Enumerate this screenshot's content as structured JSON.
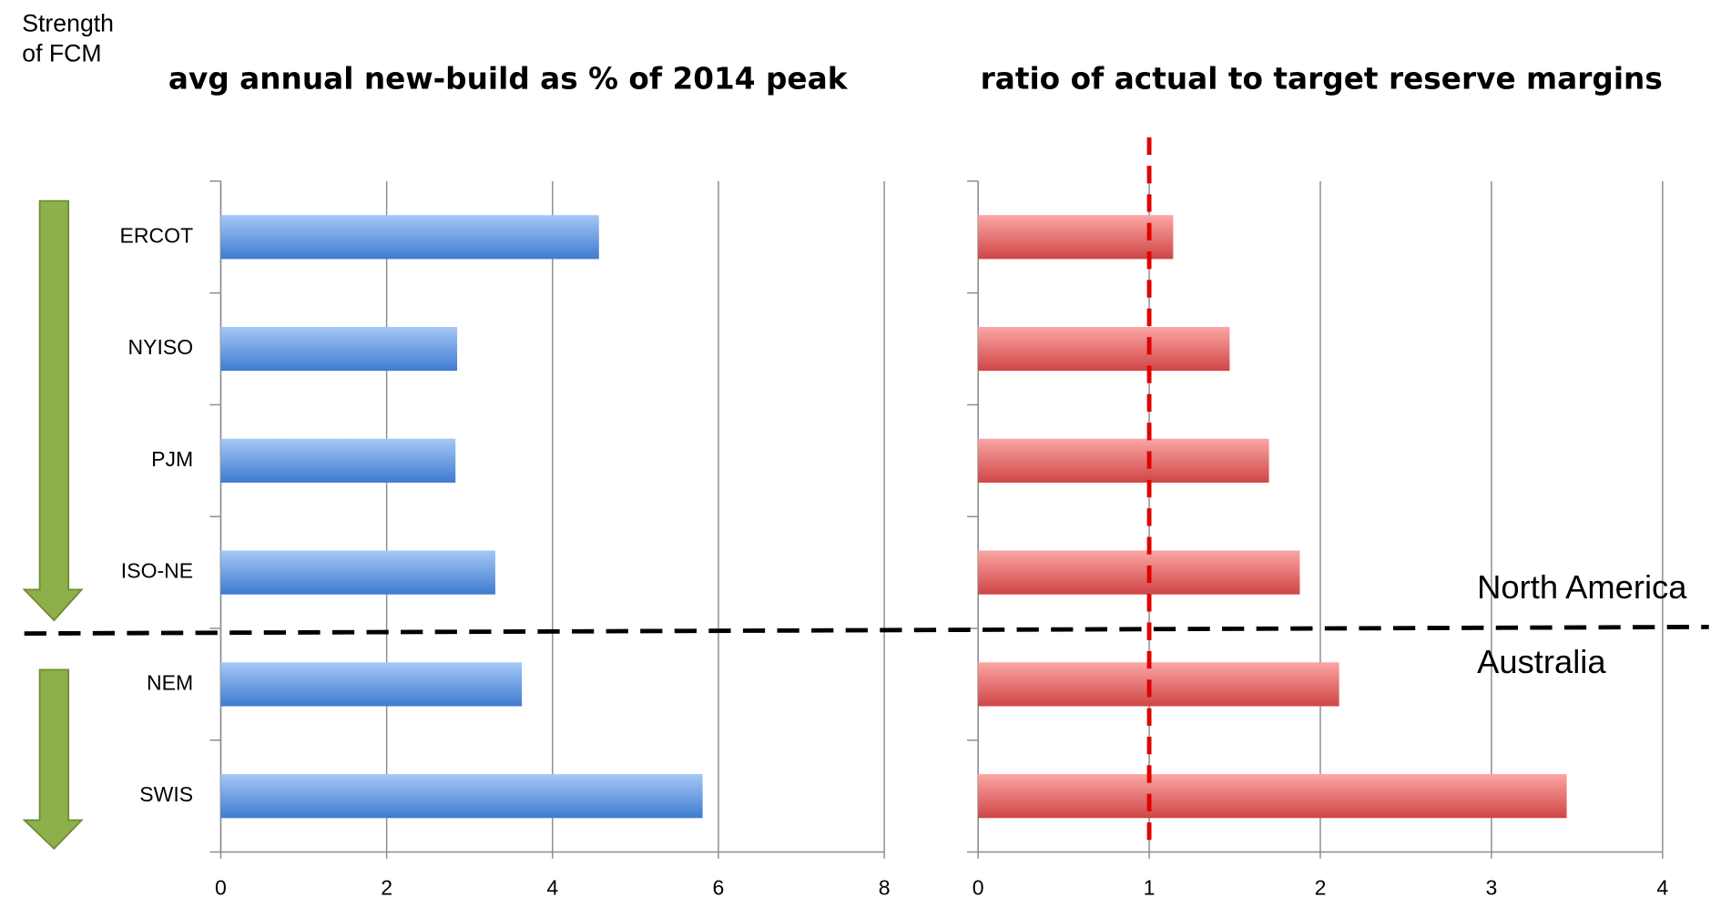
{
  "chart_data": [
    {
      "type": "bar",
      "orientation": "horizontal",
      "title": "avg annual new-build as % of 2014 peak",
      "categories": [
        "ERCOT",
        "NYISO",
        "PJM",
        "ISO-NE",
        "NEM",
        "SWIS"
      ],
      "values": [
        4.56,
        2.85,
        2.83,
        3.31,
        3.63,
        5.81
      ],
      "color": "#4a86d8",
      "xlim": [
        0,
        8
      ],
      "xticks": [
        0,
        2,
        4,
        6,
        8
      ],
      "grid": true
    },
    {
      "type": "bar",
      "orientation": "horizontal",
      "title": "ratio of actual to target reserve margins",
      "values": [
        1.14,
        1.47,
        1.7,
        1.88,
        2.11,
        3.44
      ],
      "color": "#d9504f",
      "xlim": [
        0,
        4
      ],
      "xticks": [
        0,
        1,
        2,
        3,
        4
      ],
      "grid": true,
      "reference": 1,
      "reference_color": "#e00000"
    }
  ],
  "annotations": {
    "axis_note": [
      "Strength",
      "of FCM"
    ],
    "upper_group": "North America",
    "lower_group": "Australia"
  }
}
